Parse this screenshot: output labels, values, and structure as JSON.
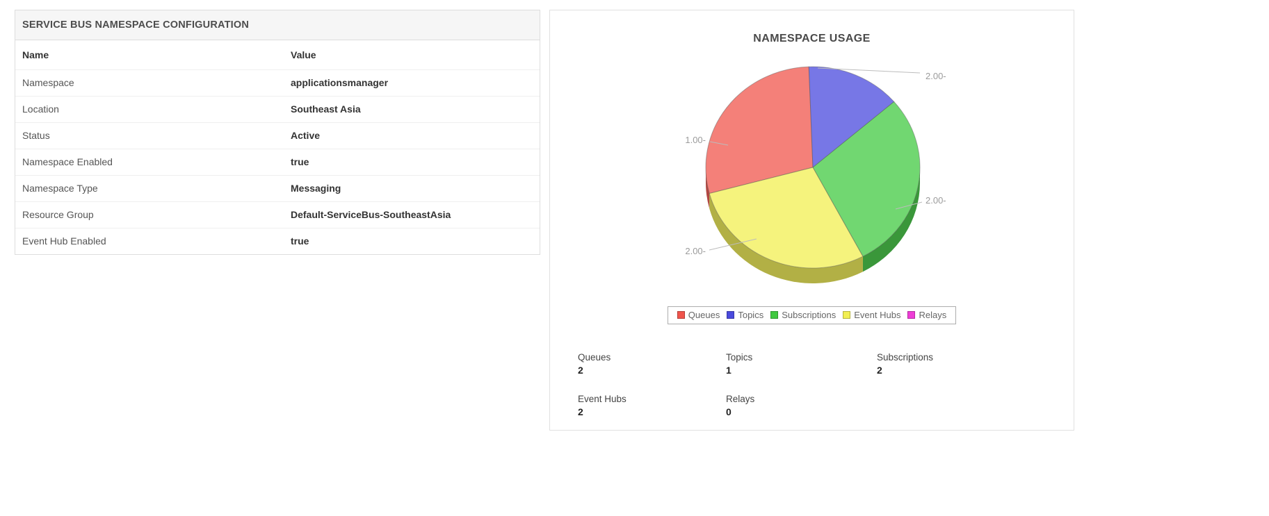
{
  "config_panel": {
    "title": "SERVICE BUS NAMESPACE CONFIGURATION",
    "columns": {
      "name": "Name",
      "value": "Value"
    },
    "rows": [
      {
        "name": "Namespace",
        "value": "applicationsmanager"
      },
      {
        "name": "Location",
        "value": "Southeast Asia"
      },
      {
        "name": "Status",
        "value": "Active"
      },
      {
        "name": "Namespace Enabled",
        "value": "true"
      },
      {
        "name": "Namespace Type",
        "value": "Messaging"
      },
      {
        "name": "Resource Group",
        "value": "Default-ServiceBus-SoutheastAsia"
      },
      {
        "name": "Event Hub Enabled",
        "value": "true"
      }
    ]
  },
  "usage_panel": {
    "title": "NAMESPACE USAGE",
    "stats": [
      {
        "label": "Queues",
        "value": "2"
      },
      {
        "label": "Topics",
        "value": "1"
      },
      {
        "label": "Subscriptions",
        "value": "2"
      },
      {
        "label": "Event Hubs",
        "value": "2"
      },
      {
        "label": "Relays",
        "value": "0"
      }
    ]
  },
  "chart_data": {
    "type": "pie",
    "title": "NAMESPACE USAGE",
    "categories": [
      "Queues",
      "Topics",
      "Subscriptions",
      "Event Hubs",
      "Relays"
    ],
    "values": [
      2,
      1,
      2,
      2,
      0
    ],
    "colors": [
      "#f0554c",
      "#4a4add",
      "#41c941",
      "#f2ef52",
      "#ee3ed6"
    ],
    "point_labels": [
      "2.00-",
      "1.00-",
      "2.00-",
      "2.00-",
      null
    ],
    "legend_position": "bottom",
    "start_angle_deg": 255,
    "style_3d": true
  }
}
